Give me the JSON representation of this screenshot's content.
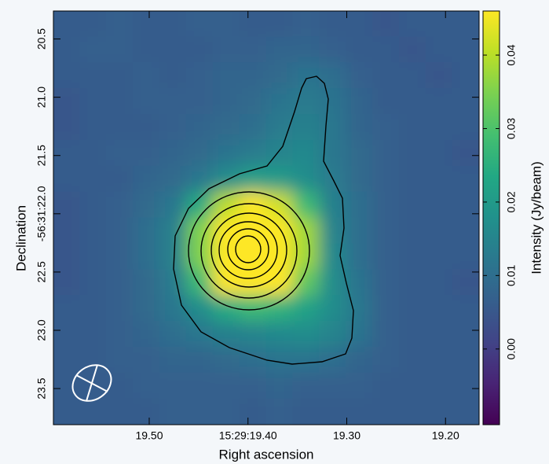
{
  "chart_data": {
    "type": "image",
    "xlabel": "Right ascension",
    "ylabel": "Declination",
    "colorbar_label": "Intensity (Jy/beam)",
    "colormap": "viridis",
    "xlim": [
      19.597,
      19.166
    ],
    "xticks": [
      {
        "value": 19.5,
        "label": "19.50"
      },
      {
        "value": 19.4,
        "label": "15:29:19.40"
      },
      {
        "value": 19.3,
        "label": "19.30"
      },
      {
        "value": 19.2,
        "label": "19.20"
      }
    ],
    "ylim": [
      20.26,
      23.81
    ],
    "yticks": [
      {
        "value": 20.5,
        "label": "20.5"
      },
      {
        "value": 21.0,
        "label": "21.0"
      },
      {
        "value": 21.5,
        "label": "21.5"
      },
      {
        "value": 22.0,
        "label": "-56:31:22.0"
      },
      {
        "value": 22.5,
        "label": "22.5"
      },
      {
        "value": 23.0,
        "label": "23.0"
      },
      {
        "value": 23.5,
        "label": "23.5"
      }
    ],
    "clim": [
      -0.0103,
      0.046
    ],
    "cticks": [
      0.04,
      0.03,
      0.02,
      0.01,
      {
        "value": 0,
        "label": "0.00"
      }
    ],
    "z": [
      [
        0.006,
        0.006,
        0.007,
        0.006,
        0.006,
        0.007,
        0.007,
        0.006,
        0.006,
        0.007,
        0.006,
        0.006,
        0.005,
        0.006,
        0.006,
        0.006
      ],
      [
        0.006,
        0.007,
        0.007,
        0.006,
        0.006,
        0.006,
        0.007,
        0.007,
        0.008,
        0.008,
        0.007,
        0.006,
        0.006,
        0.005,
        0.006,
        0.006
      ],
      [
        0.006,
        0.006,
        0.006,
        0.007,
        0.006,
        0.007,
        0.008,
        0.008,
        0.009,
        0.011,
        0.01,
        0.007,
        0.006,
        0.006,
        0.005,
        0.006
      ],
      [
        0.005,
        0.006,
        0.006,
        0.007,
        0.007,
        0.007,
        0.008,
        0.009,
        0.011,
        0.013,
        0.011,
        0.008,
        0.006,
        0.006,
        0.006,
        0.006
      ],
      [
        0.005,
        0.006,
        0.006,
        0.006,
        0.007,
        0.008,
        0.009,
        0.01,
        0.013,
        0.014,
        0.012,
        0.008,
        0.007,
        0.006,
        0.006,
        0.006
      ],
      [
        0.006,
        0.006,
        0.007,
        0.007,
        0.008,
        0.009,
        0.011,
        0.013,
        0.015,
        0.016,
        0.012,
        0.009,
        0.007,
        0.006,
        0.006,
        0.005
      ],
      [
        0.006,
        0.006,
        0.006,
        0.008,
        0.009,
        0.012,
        0.017,
        0.021,
        0.02,
        0.017,
        0.013,
        0.009,
        0.007,
        0.006,
        0.006,
        0.006
      ],
      [
        0.005,
        0.006,
        0.007,
        0.009,
        0.012,
        0.024,
        0.04,
        0.048,
        0.042,
        0.028,
        0.014,
        0.01,
        0.007,
        0.006,
        0.006,
        0.006
      ],
      [
        0.005,
        0.006,
        0.007,
        0.01,
        0.014,
        0.035,
        0.07,
        0.085,
        0.065,
        0.038,
        0.015,
        0.01,
        0.007,
        0.006,
        0.006,
        0.006
      ],
      [
        0.005,
        0.006,
        0.007,
        0.01,
        0.014,
        0.035,
        0.072,
        0.09,
        0.068,
        0.038,
        0.016,
        0.01,
        0.007,
        0.006,
        0.006,
        0.006
      ],
      [
        0.005,
        0.006,
        0.007,
        0.009,
        0.013,
        0.028,
        0.05,
        0.06,
        0.05,
        0.032,
        0.017,
        0.011,
        0.007,
        0.006,
        0.006,
        0.005
      ],
      [
        0.006,
        0.006,
        0.007,
        0.009,
        0.012,
        0.017,
        0.024,
        0.028,
        0.026,
        0.022,
        0.017,
        0.012,
        0.007,
        0.006,
        0.006,
        0.006
      ],
      [
        0.006,
        0.006,
        0.007,
        0.008,
        0.01,
        0.012,
        0.014,
        0.015,
        0.016,
        0.017,
        0.015,
        0.011,
        0.007,
        0.006,
        0.006,
        0.006
      ],
      [
        0.006,
        0.006,
        0.007,
        0.007,
        0.008,
        0.008,
        0.009,
        0.01,
        0.011,
        0.011,
        0.01,
        0.008,
        0.007,
        0.006,
        0.006,
        0.006
      ],
      [
        0.006,
        0.006,
        0.006,
        0.007,
        0.007,
        0.007,
        0.007,
        0.007,
        0.008,
        0.007,
        0.007,
        0.007,
        0.006,
        0.006,
        0.006,
        0.006
      ],
      [
        0.006,
        0.006,
        0.006,
        0.006,
        0.007,
        0.007,
        0.007,
        0.006,
        0.007,
        0.006,
        0.006,
        0.006,
        0.006,
        0.006,
        0.006,
        0.006
      ]
    ]
  }
}
